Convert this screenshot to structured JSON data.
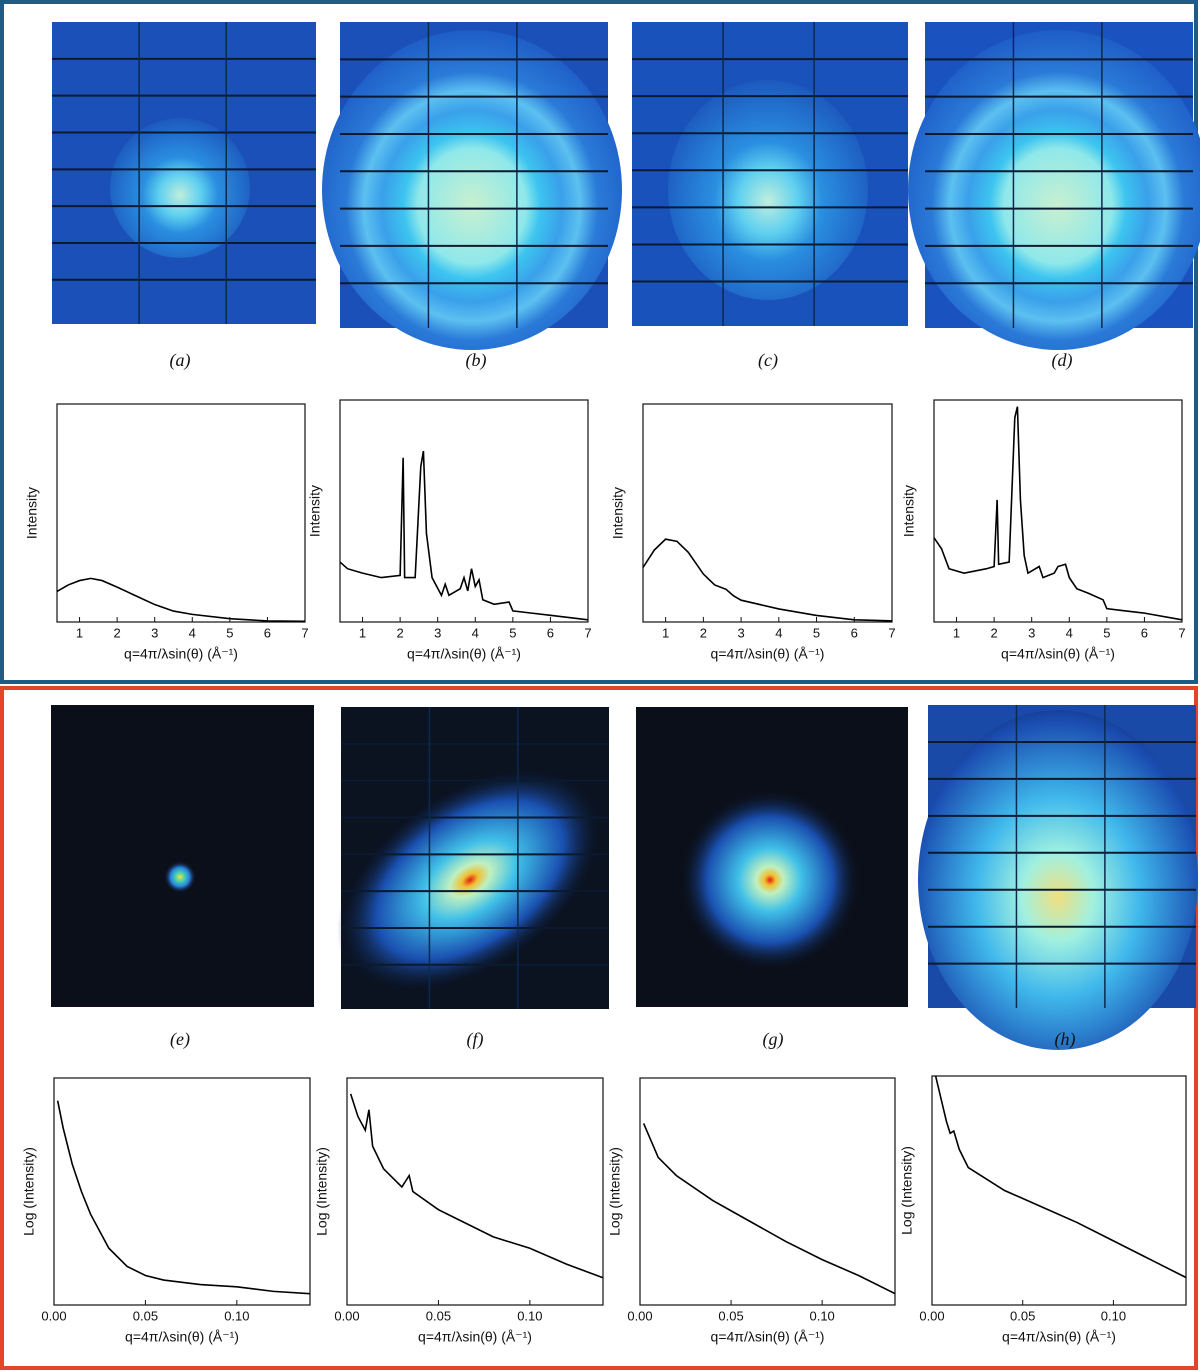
{
  "image_labels": [
    "(a)",
    "(b)",
    "(c)",
    "(d)",
    "(e)",
    "(f)",
    "(g)",
    "(h)"
  ],
  "chart_data": [
    {
      "type": "line",
      "ylabel": "Intensity",
      "xlabel": "q=4π/λsin(θ) (Å⁻¹)",
      "color": "#000000",
      "xlim": [
        0.4,
        7
      ],
      "ylim": [
        0,
        1
      ],
      "xticks": [
        1,
        2,
        3,
        4,
        5,
        6,
        7
      ],
      "x": [
        0.4,
        0.7,
        1.0,
        1.3,
        1.6,
        2,
        2.5,
        3,
        3.5,
        4,
        5,
        6,
        7
      ],
      "values": [
        0.14,
        0.17,
        0.19,
        0.2,
        0.19,
        0.16,
        0.12,
        0.08,
        0.05,
        0.035,
        0.015,
        0.005,
        0.003
      ]
    },
    {
      "type": "line",
      "ylabel": "Intensity",
      "xlabel": "q=4π/λsin(θ) (Å⁻¹)",
      "color": "#000000",
      "xlim": [
        0.4,
        7
      ],
      "ylim": [
        0,
        1
      ],
      "xticks": [
        1,
        2,
        3,
        4,
        5,
        6,
        7
      ],
      "x": [
        0.4,
        0.6,
        1,
        1.5,
        2.0,
        2.08,
        2.12,
        2.4,
        2.55,
        2.62,
        2.7,
        2.85,
        3.1,
        3.2,
        3.3,
        3.6,
        3.7,
        3.8,
        3.9,
        4.0,
        4.1,
        4.2,
        4.5,
        4.9,
        5,
        5.5,
        6,
        6.5,
        7
      ],
      "values": [
        0.27,
        0.24,
        0.22,
        0.2,
        0.21,
        0.74,
        0.2,
        0.2,
        0.7,
        0.77,
        0.4,
        0.2,
        0.12,
        0.17,
        0.12,
        0.15,
        0.2,
        0.14,
        0.24,
        0.16,
        0.19,
        0.1,
        0.08,
        0.09,
        0.05,
        0.04,
        0.03,
        0.02,
        0.01
      ]
    },
    {
      "type": "line",
      "ylabel": "Intensity",
      "xlabel": "q=4π/λsin(θ) (Å⁻¹)",
      "color": "#000000",
      "xlim": [
        0.4,
        7
      ],
      "ylim": [
        0,
        1
      ],
      "xticks": [
        1,
        2,
        3,
        4,
        5,
        6,
        7
      ],
      "x": [
        0.4,
        0.7,
        1.0,
        1.3,
        1.6,
        2,
        2.3,
        2.6,
        2.8,
        3,
        3.5,
        4,
        5,
        6,
        7
      ],
      "values": [
        0.25,
        0.33,
        0.38,
        0.37,
        0.32,
        0.22,
        0.17,
        0.15,
        0.12,
        0.1,
        0.08,
        0.06,
        0.03,
        0.01,
        0.005
      ]
    },
    {
      "type": "line",
      "ylabel": "Intensity",
      "xlabel": "q=4π/λsin(θ) (Å⁻¹)",
      "color": "#000000",
      "xlim": [
        0.4,
        7
      ],
      "ylim": [
        0,
        1
      ],
      "xticks": [
        1,
        2,
        3,
        4,
        5,
        6,
        7
      ],
      "x": [
        0.4,
        0.6,
        0.8,
        1.2,
        1.8,
        2.0,
        2.08,
        2.12,
        2.4,
        2.55,
        2.62,
        2.7,
        2.8,
        2.9,
        3.2,
        3.3,
        3.6,
        3.7,
        3.9,
        4.0,
        4.2,
        4.5,
        4.9,
        5,
        5.5,
        6,
        7
      ],
      "values": [
        0.38,
        0.33,
        0.24,
        0.22,
        0.24,
        0.25,
        0.55,
        0.26,
        0.27,
        0.92,
        0.97,
        0.55,
        0.3,
        0.22,
        0.25,
        0.2,
        0.22,
        0.25,
        0.26,
        0.2,
        0.15,
        0.13,
        0.1,
        0.06,
        0.05,
        0.04,
        0.01
      ]
    },
    {
      "type": "line",
      "ylabel": "Log (Intensity)",
      "xlabel": "q=4π/λsin(θ) (Å⁻¹)",
      "color": "#000000",
      "xlim": [
        0,
        0.14
      ],
      "ylim": [
        0,
        1
      ],
      "xticks": [
        {
          "value": 0,
          "label": "0.00"
        },
        0.05,
        {
          "value": 0.1,
          "label": "0.10"
        }
      ],
      "x": [
        0.002,
        0.005,
        0.01,
        0.015,
        0.02,
        0.03,
        0.04,
        0.05,
        0.06,
        0.08,
        0.1,
        0.12,
        0.14
      ],
      "values": [
        0.9,
        0.78,
        0.62,
        0.5,
        0.4,
        0.25,
        0.17,
        0.13,
        0.11,
        0.09,
        0.08,
        0.06,
        0.05
      ]
    },
    {
      "type": "line",
      "ylabel": "Log (Intensity)",
      "xlabel": "q=4π/λsin(θ) (Å⁻¹)",
      "color": "#000000",
      "xlim": [
        0,
        0.14
      ],
      "ylim": [
        0,
        1
      ],
      "xticks": [
        {
          "value": 0,
          "label": "0.00"
        },
        0.05,
        {
          "value": 0.1,
          "label": "0.10"
        }
      ],
      "x": [
        0.002,
        0.006,
        0.01,
        0.012,
        0.014,
        0.02,
        0.03,
        0.034,
        0.036,
        0.05,
        0.06,
        0.08,
        0.1,
        0.12,
        0.14
      ],
      "values": [
        0.93,
        0.83,
        0.77,
        0.86,
        0.7,
        0.6,
        0.52,
        0.57,
        0.5,
        0.42,
        0.38,
        0.3,
        0.25,
        0.18,
        0.12
      ]
    },
    {
      "type": "line",
      "ylabel": "Log (Intensity)",
      "xlabel": "q=4π/λsin(θ) (Å⁻¹)",
      "color": "#000000",
      "xlim": [
        0,
        0.14
      ],
      "ylim": [
        0,
        1
      ],
      "xticks": [
        {
          "value": 0,
          "label": "0.00"
        },
        0.05,
        {
          "value": 0.1,
          "label": "0.10"
        }
      ],
      "x": [
        0.002,
        0.01,
        0.02,
        0.04,
        0.06,
        0.08,
        0.1,
        0.12,
        0.14
      ],
      "values": [
        0.8,
        0.65,
        0.57,
        0.46,
        0.37,
        0.28,
        0.2,
        0.13,
        0.05
      ]
    },
    {
      "type": "line",
      "ylabel": "Log (Intensity)",
      "xlabel": "q=4π/λsin(θ) (Å⁻¹)",
      "color": "#000000",
      "xlim": [
        0,
        0.14
      ],
      "ylim": [
        0,
        1
      ],
      "xticks": [
        {
          "value": 0,
          "label": "0.00"
        },
        0.05,
        {
          "value": 0.1,
          "label": "0.10"
        }
      ],
      "x": [
        0.002,
        0.008,
        0.01,
        0.012,
        0.015,
        0.02,
        0.04,
        0.06,
        0.08,
        0.1,
        0.12,
        0.14
      ],
      "values": [
        1.0,
        0.8,
        0.75,
        0.76,
        0.68,
        0.6,
        0.5,
        0.43,
        0.36,
        0.28,
        0.2,
        0.12
      ]
    }
  ]
}
